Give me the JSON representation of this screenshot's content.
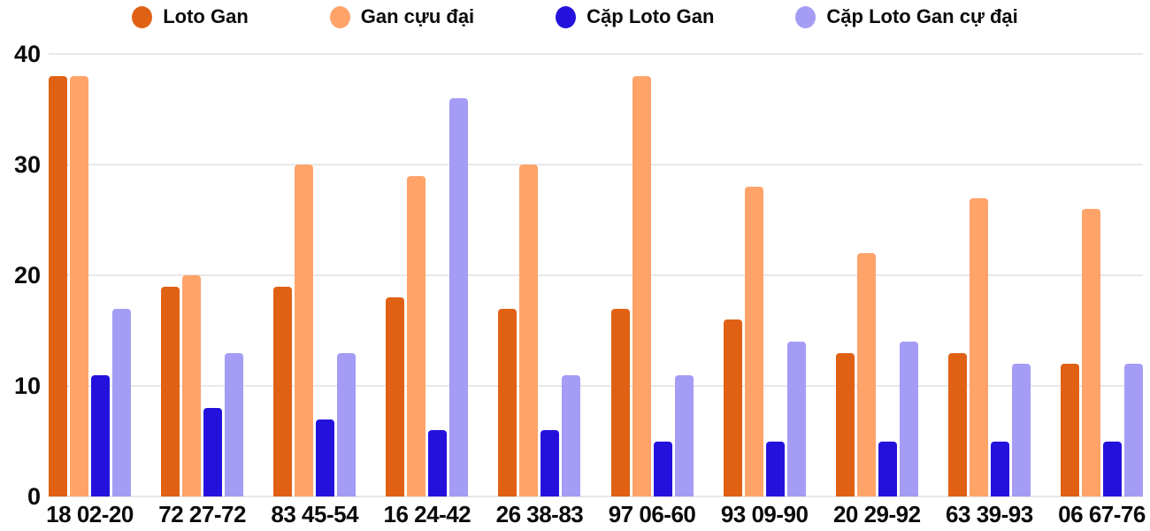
{
  "chart_data": {
    "type": "bar",
    "title": "",
    "xlabel": "",
    "ylabel": "",
    "categories": [
      "18 02-20",
      "72 27-72",
      "83 45-54",
      "16 24-42",
      "26 38-83",
      "97 06-60",
      "93 09-90",
      "20 29-92",
      "63 39-93",
      "06 67-76"
    ],
    "series": [
      {
        "name": "Loto Gan",
        "color": "#e06114",
        "values": [
          38,
          19,
          19,
          18,
          17,
          17,
          16,
          13,
          13,
          12
        ]
      },
      {
        "name": "Gan cựu đại",
        "color": "#ffa369",
        "values": [
          38,
          20,
          30,
          29,
          30,
          38,
          28,
          22,
          27,
          26
        ]
      },
      {
        "name": "Cặp Loto Gan",
        "color": "#2412dc",
        "values": [
          11,
          8,
          7,
          6,
          6,
          5,
          5,
          5,
          5,
          5
        ]
      },
      {
        "name": "Cặp Loto Gan cự đại",
        "color": "#a49cf5",
        "values": [
          17,
          13,
          13,
          36,
          11,
          11,
          14,
          14,
          12,
          12
        ]
      }
    ],
    "ylim": [
      0,
      40
    ],
    "yticks": [
      0,
      10,
      20,
      30,
      40
    ],
    "grid": true,
    "legend_position": "top"
  },
  "colors": {
    "grid": "#e8e8e8",
    "text": "#0b0b0b",
    "background": "#ffffff"
  }
}
